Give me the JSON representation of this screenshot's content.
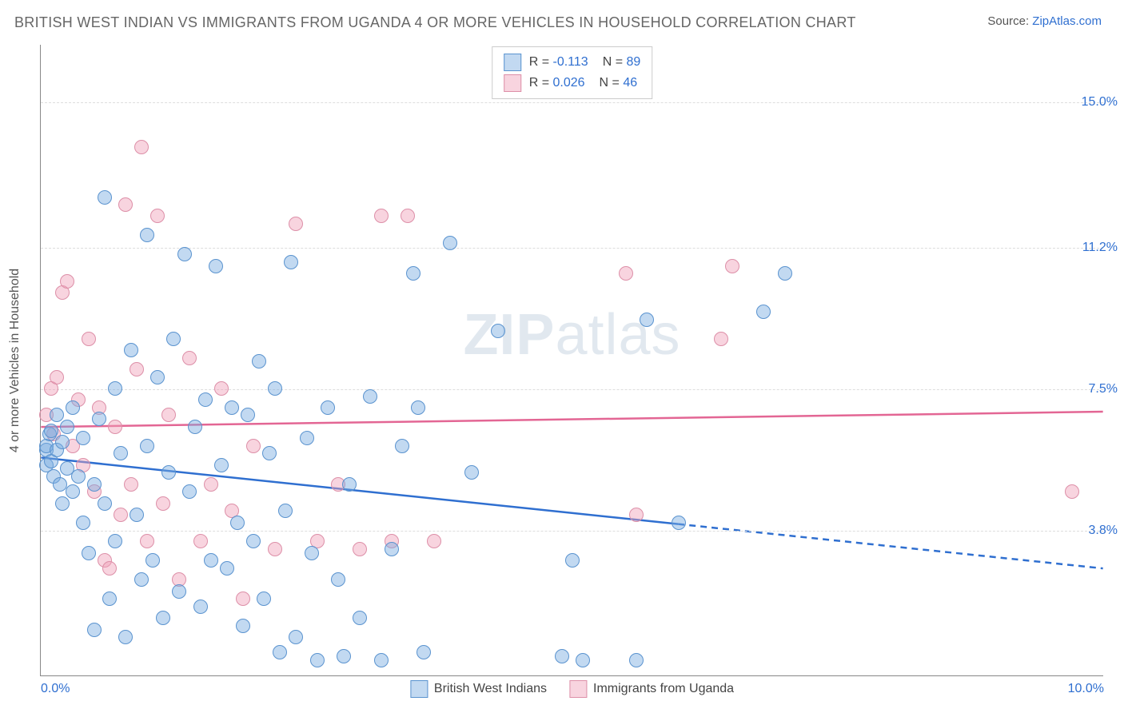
{
  "header": {
    "title": "BRITISH WEST INDIAN VS IMMIGRANTS FROM UGANDA 4 OR MORE VEHICLES IN HOUSEHOLD CORRELATION CHART",
    "source_prefix": "Source: ",
    "source_name": "ZipAtlas.com"
  },
  "chart": {
    "type": "scatter",
    "ylabel": "4 or more Vehicles in Household",
    "watermark_a": "ZIP",
    "watermark_b": "atlas",
    "xlim": [
      0.0,
      10.0
    ],
    "ylim": [
      0.0,
      16.5
    ],
    "xticks": [
      {
        "v": 0.0,
        "label": "0.0%"
      },
      {
        "v": 10.0,
        "label": "10.0%"
      }
    ],
    "yticks": [
      {
        "v": 3.8,
        "label": "3.8%"
      },
      {
        "v": 7.5,
        "label": "7.5%"
      },
      {
        "v": 11.2,
        "label": "11.2%"
      },
      {
        "v": 15.0,
        "label": "15.0%"
      }
    ],
    "colors": {
      "series_a_fill": "rgba(120,170,225,0.45)",
      "series_a_stroke": "#5a93cf",
      "series_b_fill": "rgba(240,160,185,0.45)",
      "series_b_stroke": "#dd8fa8",
      "trend_a": "#2f6fd0",
      "trend_b": "#e36694",
      "link": "#2f6fd0",
      "xtick": "#2f6fd0",
      "ytick": "#2f6fd0",
      "grid": "#dddddd",
      "axis": "#888888"
    },
    "dot_radius": 9,
    "legend_top": {
      "rows": [
        {
          "swatch": "a",
          "r_label": "R = ",
          "r_val": "-0.113",
          "n_label": "N = ",
          "n_val": "89"
        },
        {
          "swatch": "b",
          "r_label": "R = ",
          "r_val": "0.026",
          "n_label": "N = ",
          "n_val": "46"
        }
      ]
    },
    "legend_bottom": [
      {
        "swatch": "a",
        "label": "British West Indians"
      },
      {
        "swatch": "b",
        "label": "Immigrants from Uganda"
      }
    ],
    "trend_lines": {
      "a": {
        "y_at_x0": 5.7,
        "y_at_xmax": 2.8,
        "x_solid_end": 6.0
      },
      "b": {
        "y_at_x0": 6.5,
        "y_at_xmax": 6.9,
        "x_solid_end": 10.0
      }
    },
    "series_a": [
      [
        0.05,
        5.9
      ],
      [
        0.05,
        6.0
      ],
      [
        0.05,
        5.5
      ],
      [
        0.08,
        6.3
      ],
      [
        0.1,
        5.6
      ],
      [
        0.1,
        6.4
      ],
      [
        0.12,
        5.2
      ],
      [
        0.15,
        5.9
      ],
      [
        0.15,
        6.8
      ],
      [
        0.18,
        5.0
      ],
      [
        0.2,
        6.1
      ],
      [
        0.2,
        4.5
      ],
      [
        0.25,
        5.4
      ],
      [
        0.25,
        6.5
      ],
      [
        0.3,
        4.8
      ],
      [
        0.3,
        7.0
      ],
      [
        0.35,
        5.2
      ],
      [
        0.4,
        4.0
      ],
      [
        0.4,
        6.2
      ],
      [
        0.45,
        3.2
      ],
      [
        0.5,
        5.0
      ],
      [
        0.5,
        1.2
      ],
      [
        0.55,
        6.7
      ],
      [
        0.6,
        4.5
      ],
      [
        0.6,
        12.5
      ],
      [
        0.65,
        2.0
      ],
      [
        0.7,
        7.5
      ],
      [
        0.7,
        3.5
      ],
      [
        0.75,
        5.8
      ],
      [
        0.8,
        1.0
      ],
      [
        0.85,
        8.5
      ],
      [
        0.9,
        4.2
      ],
      [
        0.95,
        2.5
      ],
      [
        1.0,
        6.0
      ],
      [
        1.0,
        11.5
      ],
      [
        1.05,
        3.0
      ],
      [
        1.1,
        7.8
      ],
      [
        1.15,
        1.5
      ],
      [
        1.2,
        5.3
      ],
      [
        1.25,
        8.8
      ],
      [
        1.3,
        2.2
      ],
      [
        1.35,
        11.0
      ],
      [
        1.4,
        4.8
      ],
      [
        1.45,
        6.5
      ],
      [
        1.5,
        1.8
      ],
      [
        1.55,
        7.2
      ],
      [
        1.6,
        3.0
      ],
      [
        1.65,
        10.7
      ],
      [
        1.7,
        5.5
      ],
      [
        1.75,
        2.8
      ],
      [
        1.8,
        7.0
      ],
      [
        1.85,
        4.0
      ],
      [
        1.9,
        1.3
      ],
      [
        1.95,
        6.8
      ],
      [
        2.0,
        3.5
      ],
      [
        2.05,
        8.2
      ],
      [
        2.1,
        2.0
      ],
      [
        2.15,
        5.8
      ],
      [
        2.2,
        7.5
      ],
      [
        2.25,
        0.6
      ],
      [
        2.3,
        4.3
      ],
      [
        2.35,
        10.8
      ],
      [
        2.4,
        1.0
      ],
      [
        2.5,
        6.2
      ],
      [
        2.55,
        3.2
      ],
      [
        2.6,
        0.4
      ],
      [
        2.7,
        7.0
      ],
      [
        2.8,
        2.5
      ],
      [
        2.85,
        0.5
      ],
      [
        2.9,
        5.0
      ],
      [
        3.0,
        1.5
      ],
      [
        3.1,
        7.3
      ],
      [
        3.2,
        0.4
      ],
      [
        3.3,
        3.3
      ],
      [
        3.4,
        6.0
      ],
      [
        3.5,
        10.5
      ],
      [
        3.55,
        7.0
      ],
      [
        3.6,
        0.6
      ],
      [
        3.85,
        11.3
      ],
      [
        4.05,
        5.3
      ],
      [
        4.3,
        9.0
      ],
      [
        4.9,
        0.5
      ],
      [
        5.0,
        3.0
      ],
      [
        5.1,
        0.4
      ],
      [
        5.6,
        0.4
      ],
      [
        5.7,
        9.3
      ],
      [
        6.0,
        4.0
      ],
      [
        6.8,
        9.5
      ],
      [
        7.0,
        10.5
      ]
    ],
    "series_b": [
      [
        0.05,
        6.8
      ],
      [
        0.1,
        7.5
      ],
      [
        0.12,
        6.3
      ],
      [
        0.15,
        7.8
      ],
      [
        0.2,
        10.0
      ],
      [
        0.25,
        10.3
      ],
      [
        0.3,
        6.0
      ],
      [
        0.35,
        7.2
      ],
      [
        0.4,
        5.5
      ],
      [
        0.45,
        8.8
      ],
      [
        0.5,
        4.8
      ],
      [
        0.55,
        7.0
      ],
      [
        0.6,
        3.0
      ],
      [
        0.65,
        2.8
      ],
      [
        0.7,
        6.5
      ],
      [
        0.75,
        4.2
      ],
      [
        0.8,
        12.3
      ],
      [
        0.85,
        5.0
      ],
      [
        0.9,
        8.0
      ],
      [
        0.95,
        13.8
      ],
      [
        1.0,
        3.5
      ],
      [
        1.1,
        12.0
      ],
      [
        1.15,
        4.5
      ],
      [
        1.2,
        6.8
      ],
      [
        1.3,
        2.5
      ],
      [
        1.4,
        8.3
      ],
      [
        1.5,
        3.5
      ],
      [
        1.6,
        5.0
      ],
      [
        1.7,
        7.5
      ],
      [
        1.8,
        4.3
      ],
      [
        1.9,
        2.0
      ],
      [
        2.0,
        6.0
      ],
      [
        2.2,
        3.3
      ],
      [
        2.4,
        11.8
      ],
      [
        2.6,
        3.5
      ],
      [
        2.8,
        5.0
      ],
      [
        3.0,
        3.3
      ],
      [
        3.2,
        12.0
      ],
      [
        3.3,
        3.5
      ],
      [
        3.45,
        12.0
      ],
      [
        3.7,
        3.5
      ],
      [
        5.5,
        10.5
      ],
      [
        5.6,
        4.2
      ],
      [
        6.4,
        8.8
      ],
      [
        6.5,
        10.7
      ],
      [
        9.7,
        4.8
      ]
    ]
  }
}
